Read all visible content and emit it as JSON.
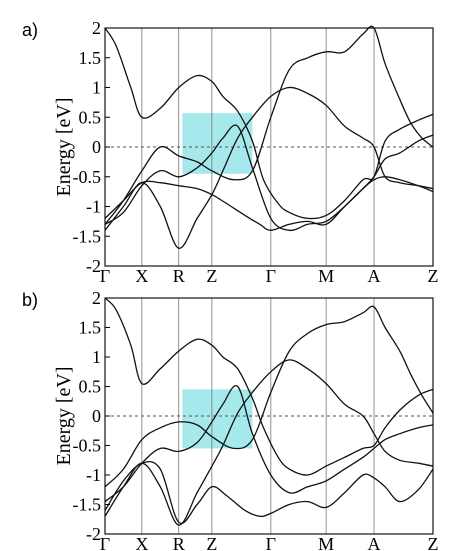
{
  "chart_data": [
    {
      "type": "line",
      "panel_label": "a)",
      "ylabel": "Energy [eV]",
      "ylim": [
        -2,
        2
      ],
      "yticks": [
        "2",
        "1.5",
        "1",
        "0.5",
        "0",
        "-0.5",
        "-1",
        "-1.5",
        "-2"
      ],
      "k_points": [
        "Γ",
        "X",
        "R",
        "Z",
        "Γ",
        "M",
        "A",
        "Z"
      ],
      "k_pos": [
        0,
        1,
        2,
        2.9,
        4.5,
        6,
        7.3,
        8.9
      ],
      "xlim": [
        0,
        8.9
      ],
      "fermi_level": 0,
      "highlight": {
        "x": [
          2.1,
          4.0
        ],
        "y": [
          -0.45,
          0.57
        ]
      },
      "series": [
        {
          "x": [
            0,
            0.3,
            0.7,
            1.0,
            1.5,
            2.0,
            2.5,
            2.9,
            3.2,
            3.6,
            4.0,
            4.3,
            4.7,
            5.0,
            5.5,
            6.0,
            6.5,
            7.0,
            7.3,
            7.6,
            8.0,
            8.5,
            8.9
          ],
          "y": [
            2.0,
            1.7,
            1.0,
            0.5,
            0.65,
            1.0,
            1.2,
            1.1,
            0.85,
            0.6,
            0.1,
            -0.55,
            -0.95,
            -1.1,
            -1.2,
            -1.15,
            -0.9,
            -0.55,
            -0.5,
            0.1,
            0.3,
            0.45,
            0.55
          ]
        },
        {
          "x": [
            0,
            0.5,
            1.0,
            1.5,
            2.0,
            2.5,
            2.9,
            3.5,
            4.0,
            4.5,
            5.0,
            5.5,
            6.0,
            6.5,
            7.0,
            7.3,
            7.6,
            8.0,
            8.3,
            8.6,
            8.9
          ],
          "y": [
            -1.3,
            -0.9,
            -0.4,
            0.0,
            -0.15,
            -0.25,
            -0.4,
            -0.55,
            -0.4,
            0.5,
            1.3,
            1.5,
            1.6,
            1.6,
            1.9,
            2.0,
            1.4,
            0.8,
            0.4,
            0.15,
            0.0
          ]
        },
        {
          "x": [
            0,
            0.5,
            1.0,
            1.5,
            2.0,
            2.5,
            2.9,
            3.2,
            3.6,
            4.0,
            4.5,
            5.0,
            5.5,
            6.0,
            6.5,
            7.0,
            7.3,
            7.6,
            8.0,
            8.5,
            8.9
          ],
          "y": [
            -1.3,
            -1.1,
            -0.65,
            -0.4,
            -0.5,
            -0.35,
            -0.1,
            0.15,
            0.35,
            -0.35,
            -1.2,
            -1.4,
            -1.3,
            -1.25,
            -1.0,
            -0.7,
            -0.5,
            -0.2,
            -0.1,
            0.1,
            0.2
          ]
        },
        {
          "x": [
            0,
            0.5,
            1.0,
            1.5,
            2.0,
            2.5,
            2.9,
            3.2,
            3.6,
            4.0,
            4.5,
            5.0,
            5.5,
            6.0,
            6.5,
            7.0,
            7.3,
            7.6,
            8.0,
            8.5,
            8.9
          ],
          "y": [
            -1.4,
            -1.0,
            -0.6,
            -1.0,
            -1.7,
            -1.2,
            -0.8,
            -0.4,
            0.15,
            0.5,
            0.85,
            1.0,
            0.9,
            0.7,
            0.35,
            0.15,
            0.0,
            -0.5,
            -0.6,
            -0.65,
            -0.7
          ]
        },
        {
          "x": [
            0,
            0.5,
            1.0,
            1.5,
            2.0,
            2.5,
            2.9,
            3.3,
            3.8,
            4.2,
            4.5,
            5.0,
            5.5,
            6.0,
            6.5,
            7.0,
            7.3,
            7.6,
            8.0,
            8.5,
            8.9
          ],
          "y": [
            -1.2,
            -0.9,
            -0.6,
            -0.6,
            -0.65,
            -0.7,
            -0.8,
            -0.95,
            -1.15,
            -1.3,
            -1.4,
            -1.3,
            -1.25,
            -1.3,
            -1.0,
            -0.7,
            -0.55,
            -0.5,
            -0.55,
            -0.65,
            -0.75
          ]
        }
      ]
    },
    {
      "type": "line",
      "panel_label": "b)",
      "ylabel": "Energy [eV]",
      "ylim": [
        -2,
        2
      ],
      "yticks": [
        "2",
        "1.5",
        "1",
        "0.5",
        "0",
        "-0.5",
        "-1",
        "-1.5",
        "-2"
      ],
      "k_points": [
        "Γ",
        "X",
        "R",
        "Z",
        "Γ",
        "M",
        "A",
        "Z"
      ],
      "k_pos": [
        0,
        1,
        2,
        2.9,
        4.5,
        6,
        7.3,
        8.9
      ],
      "xlim": [
        0,
        8.9
      ],
      "fermi_level": 0,
      "highlight": {
        "x": [
          2.1,
          4.0
        ],
        "y": [
          -0.55,
          0.45
        ]
      },
      "series": [
        {
          "x": [
            0,
            0.3,
            0.7,
            1.0,
            1.5,
            2.0,
            2.5,
            2.9,
            3.2,
            3.6,
            4.0,
            4.3,
            4.7,
            5.0,
            5.5,
            6.0,
            6.5,
            7.0,
            7.3,
            7.6,
            8.0,
            8.5,
            8.9
          ],
          "y": [
            2.0,
            1.8,
            1.2,
            0.55,
            0.8,
            1.1,
            1.3,
            1.2,
            1.0,
            0.8,
            0.3,
            -0.2,
            -0.7,
            -0.9,
            -1.0,
            -0.85,
            -0.7,
            -0.55,
            -0.5,
            -0.2,
            0.1,
            0.35,
            0.45
          ]
        },
        {
          "x": [
            0,
            0.5,
            1.0,
            1.5,
            2.0,
            2.5,
            2.9,
            3.5,
            4.0,
            4.5,
            5.0,
            5.5,
            6.0,
            6.5,
            7.0,
            7.3,
            7.6,
            8.0,
            8.3,
            8.6,
            8.9
          ],
          "y": [
            -1.2,
            -0.9,
            -0.4,
            -0.2,
            -0.1,
            -0.15,
            -0.35,
            -0.55,
            -0.4,
            0.4,
            1.1,
            1.4,
            1.55,
            1.6,
            1.75,
            1.85,
            1.5,
            1.1,
            0.7,
            0.35,
            0.05
          ]
        },
        {
          "x": [
            0,
            0.5,
            1.0,
            1.5,
            2.0,
            2.5,
            2.9,
            3.2,
            3.6,
            4.0,
            4.5,
            5.0,
            5.5,
            6.0,
            6.5,
            7.0,
            7.3,
            7.6,
            8.0,
            8.5,
            8.9
          ],
          "y": [
            -1.45,
            -1.2,
            -0.8,
            -0.55,
            -0.6,
            -0.45,
            -0.1,
            0.2,
            0.5,
            -0.3,
            -1.0,
            -1.3,
            -1.2,
            -1.1,
            -0.9,
            -0.7,
            -0.55,
            -0.4,
            -0.3,
            -0.2,
            -0.15
          ]
        },
        {
          "x": [
            0,
            0.5,
            1.0,
            1.5,
            2.0,
            2.5,
            2.9,
            3.2,
            3.6,
            4.0,
            4.5,
            5.0,
            5.5,
            6.0,
            6.5,
            7.0,
            7.3,
            7.6,
            8.0,
            8.5,
            8.9
          ],
          "y": [
            -1.7,
            -1.2,
            -0.8,
            -1.2,
            -1.85,
            -1.3,
            -0.85,
            -0.5,
            0.05,
            0.4,
            0.75,
            0.95,
            0.8,
            0.55,
            0.2,
            0.0,
            -0.3,
            -0.6,
            -0.75,
            -0.8,
            -0.85
          ]
        },
        {
          "x": [
            0,
            0.5,
            1.0,
            1.5,
            2.0,
            2.5,
            2.9,
            3.3,
            3.8,
            4.2,
            4.5,
            5.0,
            5.5,
            6.0,
            6.5,
            7.0,
            7.3,
            7.6,
            8.0,
            8.5,
            8.9
          ],
          "y": [
            -1.6,
            -1.1,
            -0.8,
            -0.9,
            -1.8,
            -1.5,
            -1.2,
            -1.35,
            -1.6,
            -1.7,
            -1.65,
            -1.5,
            -1.45,
            -1.55,
            -1.3,
            -1.0,
            -1.05,
            -1.2,
            -1.45,
            -1.25,
            -0.9
          ]
        }
      ]
    }
  ]
}
